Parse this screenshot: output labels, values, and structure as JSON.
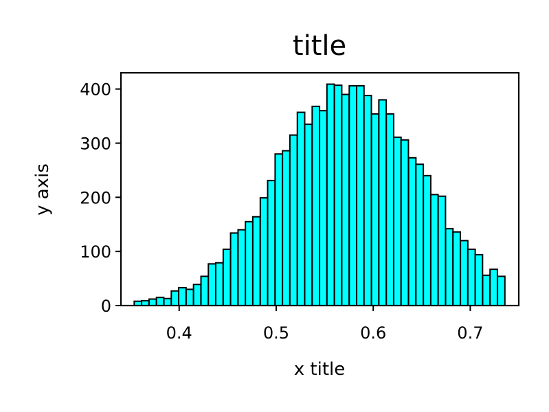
{
  "chart_data": {
    "type": "bar",
    "title": "title",
    "xlabel": "x title",
    "ylabel": "y axis",
    "xlim": [
      0.34,
      0.75
    ],
    "ylim": [
      0,
      430
    ],
    "xticks": [
      0.4,
      0.5,
      0.6,
      0.7
    ],
    "xtick_labels": [
      "0.4",
      "0.5",
      "0.6",
      "0.7"
    ],
    "yticks": [
      0,
      100,
      200,
      300,
      400
    ],
    "ytick_labels": [
      "0",
      "100",
      "200",
      "300",
      "400"
    ],
    "grid": false,
    "bar_color": "#00ffff",
    "edge_color": "#000000",
    "bin_edges": [
      0.3537,
      0.3613,
      0.369,
      0.3766,
      0.3843,
      0.3919,
      0.3995,
      0.4072,
      0.4148,
      0.4225,
      0.4301,
      0.4377,
      0.4454,
      0.453,
      0.4607,
      0.4683,
      0.4759,
      0.4836,
      0.4912,
      0.4989,
      0.5065,
      0.5141,
      0.5218,
      0.5294,
      0.5371,
      0.5447,
      0.5523,
      0.56,
      0.5676,
      0.5753,
      0.5829,
      0.5905,
      0.5982,
      0.6058,
      0.6135,
      0.6211,
      0.6287,
      0.6364,
      0.644,
      0.6517,
      0.6593,
      0.6669,
      0.6746,
      0.6822,
      0.6899,
      0.6975,
      0.7051,
      0.7128,
      0.7204,
      0.7281
    ],
    "counts": [
      8,
      9,
      12,
      15,
      13,
      27,
      33,
      30,
      39,
      54,
      77,
      79,
      104,
      134,
      140,
      155,
      164,
      199,
      231,
      280,
      286,
      315,
      357,
      335,
      368,
      360,
      409,
      407,
      390,
      406,
      406,
      388,
      354,
      380,
      354,
      311,
      306,
      273,
      261,
      240,
      205,
      202,
      142,
      136,
      120,
      104,
      94,
      56,
      67,
      54
    ]
  }
}
